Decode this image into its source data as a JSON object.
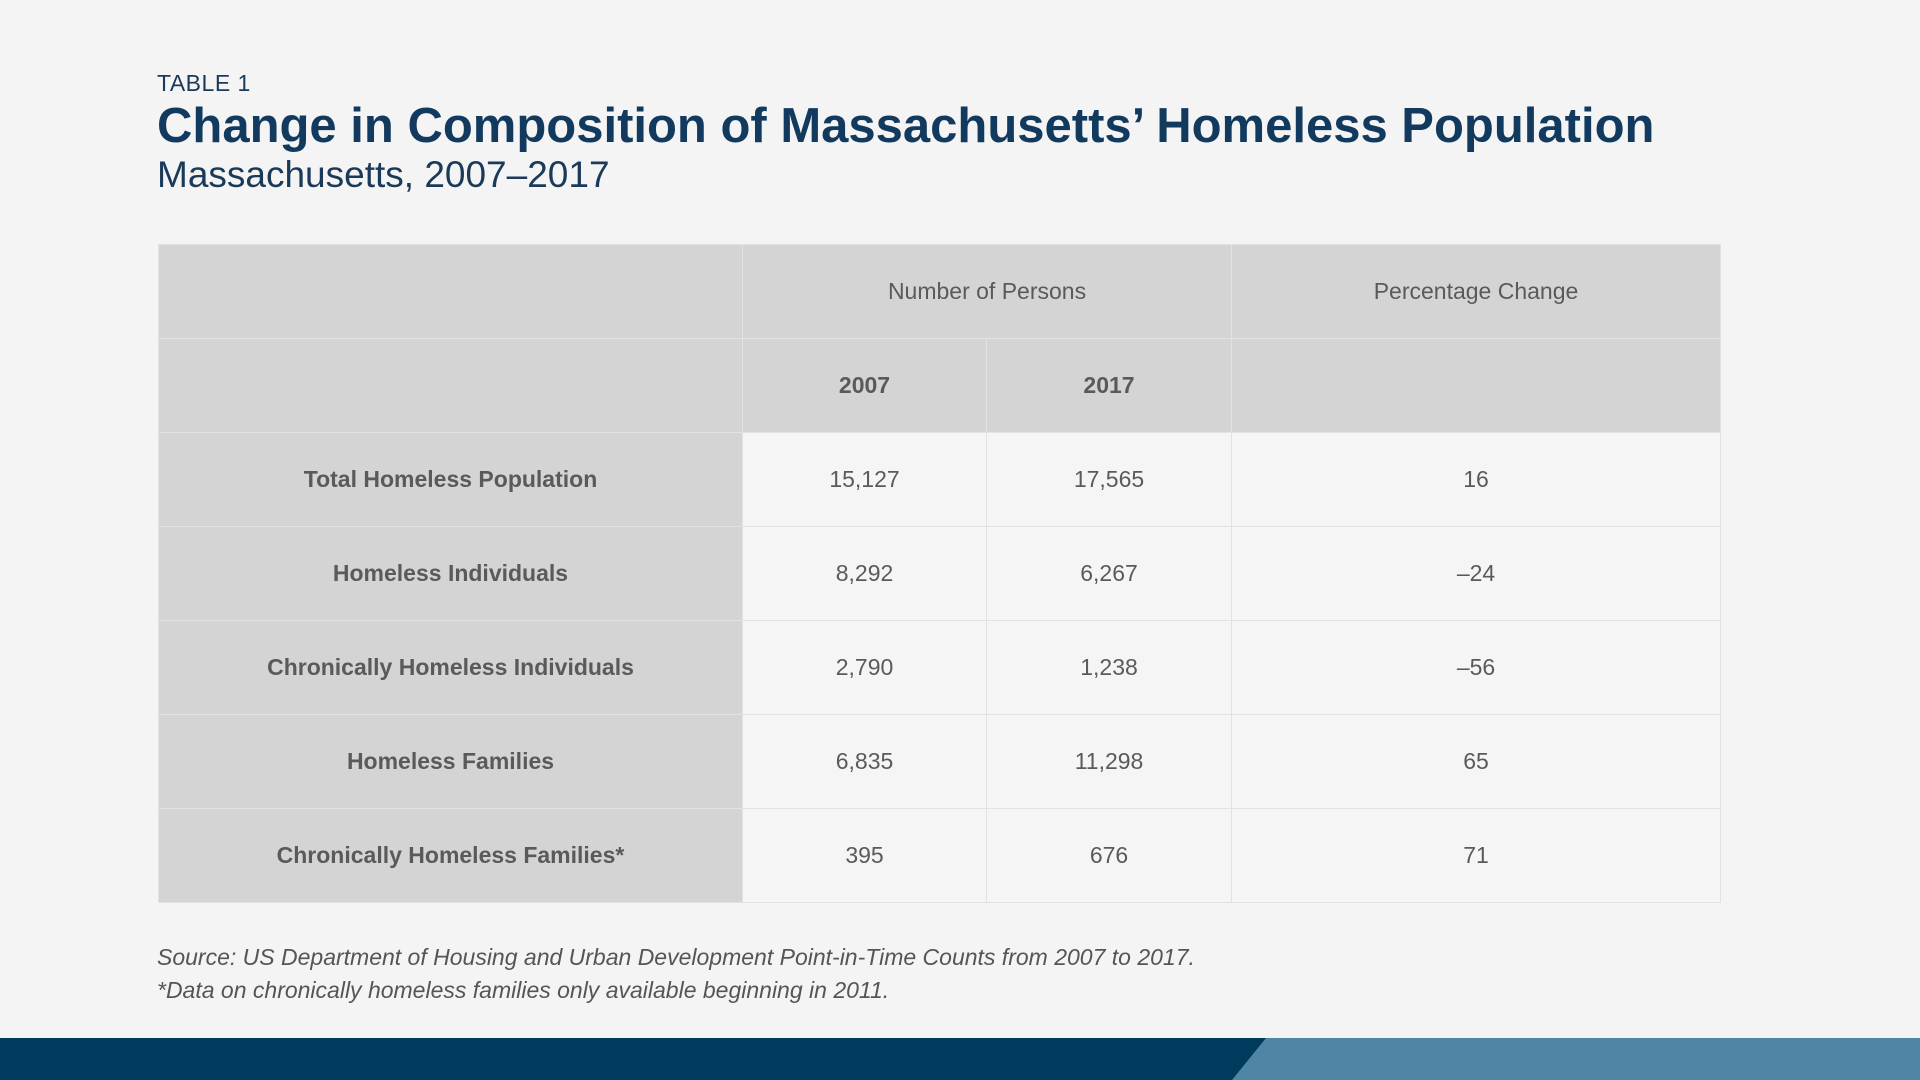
{
  "chart_data": {
    "type": "table",
    "label": "TABLE 1",
    "title": "Change in Composition of Massachusetts’ Homeless Population",
    "subtitle": "Massachusetts, 2007–2017",
    "header": {
      "group_persons": "Number of Persons",
      "group_change": "Percentage Change",
      "year_a": "2007",
      "year_b": "2017"
    },
    "rows": [
      {
        "label": "Total Homeless Population",
        "y2007": "15,127",
        "y2017": "17,565",
        "pct": "16"
      },
      {
        "label": "Homeless Individuals",
        "y2007": "8,292",
        "y2017": "6,267",
        "pct": "–24"
      },
      {
        "label": "Chronically Homeless Individuals",
        "y2007": "2,790",
        "y2017": "1,238",
        "pct": "–56"
      },
      {
        "label": "Homeless Families",
        "y2007": "6,835",
        "y2017": "11,298",
        "pct": "65"
      },
      {
        "label": "Chronically Homeless Families*",
        "y2007": "395",
        "y2017": "676",
        "pct": "71"
      }
    ],
    "source": "Source: US Department of Housing and Urban Development Point-in-Time Counts from 2007 to 2017.",
    "footnote": "*Data on chronically homeless families only available beginning in 2011."
  },
  "colors": {
    "title": "#123a5e",
    "header_bg": "#d4d4d4",
    "cell_bg": "#f5f5f5",
    "footer_dark": "#003a5c",
    "footer_light": "#5085a5"
  }
}
